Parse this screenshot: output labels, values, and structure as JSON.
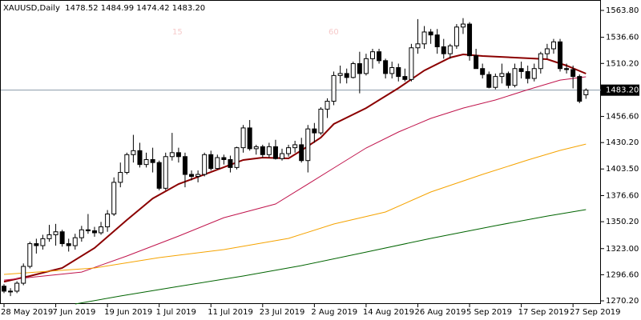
{
  "chart_data": {
    "type": "candlestick",
    "header": "XAUUSD,Daily  1478.52 1484.99 1474.42 1483.20",
    "annotations": [
      "15",
      "60"
    ],
    "categories": [
      "28 May 2019",
      null,
      null,
      null,
      null,
      null,
      null,
      null,
      "7 Jun 2019",
      null,
      null,
      null,
      null,
      null,
      null,
      null,
      "19 Jun 2019",
      null,
      null,
      null,
      null,
      null,
      null,
      null,
      "1 Jul 2019",
      null,
      null,
      null,
      null,
      null,
      null,
      null,
      "11 Jul 2019",
      null,
      null,
      null,
      null,
      null,
      null,
      null,
      "23 Jul 2019",
      null,
      null,
      null,
      null,
      null,
      null,
      null,
      "2 Aug 2019",
      null,
      null,
      null,
      null,
      null,
      null,
      null,
      "14 Aug 2019",
      null,
      null,
      null,
      null,
      null,
      null,
      null,
      "26 Aug 2019",
      null,
      null,
      null,
      null,
      null,
      null,
      null,
      "5 Sep 2019",
      null,
      null,
      null,
      null,
      null,
      null,
      null,
      "17 Sep 2019",
      null,
      null,
      null,
      null,
      null,
      null,
      null,
      "27 Sep 2019",
      null,
      null
    ],
    "open": [
      1285,
      1280,
      1280,
      1288,
      1305,
      1328,
      1326,
      1333,
      1337,
      1340,
      1328,
      1326,
      1334,
      1342,
      1341,
      1339,
      1345,
      1358,
      1390,
      1400,
      1418,
      1422,
      1408,
      1413,
      1410,
      1384,
      1416,
      1420,
      1416,
      1398,
      1396,
      1398,
      1418,
      1404,
      1415,
      1413,
      1405,
      1425,
      1445,
      1424,
      1426,
      1418,
      1426,
      1414,
      1419,
      1425,
      1428,
      1412,
      1444,
      1440,
      1464,
      1472,
      1498,
      1500,
      1496,
      1510,
      1500,
      1515,
      1522,
      1513,
      1500,
      1506,
      1497,
      1494,
      1526,
      1530,
      1542,
      1539,
      1527,
      1520,
      1528,
      1547,
      1550,
      1518,
      1505,
      1499,
      1486,
      1497,
      1500,
      1488,
      1505,
      1502,
      1495,
      1505,
      1520,
      1525,
      1532,
      1505,
      1504,
      1497,
      1478.52
    ],
    "high": [
      1287,
      1283,
      1290,
      1308,
      1330,
      1333,
      1337,
      1347,
      1348,
      1342,
      1333,
      1338,
      1346,
      1358,
      1345,
      1350,
      1362,
      1395,
      1410,
      1420,
      1438,
      1430,
      1420,
      1425,
      1412,
      1420,
      1440,
      1425,
      1420,
      1402,
      1402,
      1420,
      1422,
      1418,
      1418,
      1417,
      1426,
      1448,
      1453,
      1428,
      1428,
      1430,
      1433,
      1424,
      1428,
      1432,
      1435,
      1448,
      1450,
      1466,
      1475,
      1502,
      1508,
      1505,
      1512,
      1522,
      1520,
      1525,
      1525,
      1515,
      1512,
      1510,
      1505,
      1530,
      1555,
      1548,
      1545,
      1545,
      1535,
      1530,
      1550,
      1556,
      1552,
      1525,
      1510,
      1502,
      1500,
      1510,
      1502,
      1510,
      1512,
      1508,
      1510,
      1522,
      1530,
      1535,
      1535,
      1510,
      1508,
      1499,
      1484.99
    ],
    "low": [
      1278,
      1275,
      1278,
      1286,
      1303,
      1318,
      1322,
      1330,
      1326,
      1325,
      1320,
      1322,
      1330,
      1338,
      1335,
      1337,
      1340,
      1356,
      1385,
      1398,
      1410,
      1405,
      1405,
      1400,
      1382,
      1382,
      1412,
      1410,
      1385,
      1392,
      1390,
      1396,
      1402,
      1403,
      1408,
      1400,
      1403,
      1420,
      1422,
      1418,
      1415,
      1415,
      1413,
      1412,
      1416,
      1420,
      1410,
      1400,
      1430,
      1438,
      1455,
      1468,
      1490,
      1490,
      1495,
      1480,
      1498,
      1505,
      1510,
      1495,
      1495,
      1492,
      1492,
      1492,
      1520,
      1525,
      1530,
      1520,
      1515,
      1515,
      1525,
      1540,
      1513,
      1505,
      1495,
      1485,
      1484,
      1490,
      1485,
      1486,
      1495,
      1490,
      1492,
      1500,
      1515,
      1520,
      1502,
      1500,
      1485,
      1470,
      1474.42
    ],
    "close": [
      1280,
      1280,
      1288,
      1305,
      1328,
      1326,
      1333,
      1337,
      1340,
      1328,
      1326,
      1334,
      1342,
      1341,
      1339,
      1345,
      1358,
      1390,
      1400,
      1418,
      1422,
      1408,
      1413,
      1410,
      1384,
      1416,
      1420,
      1416,
      1398,
      1396,
      1398,
      1418,
      1404,
      1415,
      1413,
      1405,
      1425,
      1445,
      1424,
      1426,
      1418,
      1426,
      1414,
      1419,
      1425,
      1428,
      1412,
      1444,
      1440,
      1464,
      1472,
      1498,
      1500,
      1496,
      1510,
      1500,
      1515,
      1522,
      1513,
      1500,
      1506,
      1497,
      1494,
      1526,
      1530,
      1542,
      1539,
      1527,
      1520,
      1528,
      1547,
      1550,
      1518,
      1505,
      1499,
      1486,
      1497,
      1500,
      1488,
      1505,
      1502,
      1495,
      1505,
      1520,
      1525,
      1532,
      1505,
      1504,
      1497,
      1472,
      1483.2
    ],
    "indicators": [
      {
        "color": "#8b0000",
        "width": 2,
        "x": [
          0,
          4,
          9,
          14,
          19,
          23,
          27,
          32,
          37,
          40,
          44,
          46,
          49,
          51,
          56,
          61,
          65,
          69,
          71,
          74,
          79,
          84,
          87,
          90
        ],
        "values": [
          1289.6,
          1295.3,
          1303.4,
          1323.6,
          1351.9,
          1373.7,
          1388.3,
          1400.4,
          1412.6,
          1415.0,
          1414.2,
          1422.3,
          1435.2,
          1449.0,
          1465.1,
          1485.3,
          1503.1,
          1516.1,
          1519.3,
          1517.7,
          1516.1,
          1514.5,
          1508.0,
          1499.9
        ]
      },
      {
        "color": "#c0144c",
        "width": 1,
        "x": [
          0,
          12,
          19,
          27,
          34,
          42,
          46,
          51,
          56,
          61,
          66,
          71,
          76,
          81,
          86,
          90
        ],
        "values": [
          1291.2,
          1299.3,
          1315.5,
          1335.7,
          1354.3,
          1368.1,
          1384.2,
          1404.5,
          1424.7,
          1440.9,
          1454.6,
          1465.1,
          1473.2,
          1483.7,
          1493.4,
          1496.7
        ]
      },
      {
        "color": "#f5a300",
        "width": 1,
        "x": [
          0,
          14,
          24,
          34,
          44,
          51,
          59,
          66,
          74,
          81,
          86,
          90
        ],
        "values": [
          1296.9,
          1303.4,
          1313.9,
          1322.0,
          1333.3,
          1347.9,
          1360.0,
          1380.2,
          1398.0,
          1412.6,
          1422.3,
          1428.7
        ]
      },
      {
        "color": "#006400",
        "width": 1,
        "x": [
          11,
          18,
          27,
          37,
          46,
          56,
          66,
          76,
          84,
          90
        ],
        "values": [
          1267.0,
          1275.1,
          1284.8,
          1295.3,
          1305.8,
          1319.5,
          1333.3,
          1346.2,
          1355.9,
          1362.4
        ]
      }
    ],
    "price_line": {
      "value": 1483.2,
      "label": "1483.20"
    },
    "ylim": [
      1267.0,
      1571.9
    ],
    "yticks": [
      {
        "value": 1563.8,
        "label": "1563.80"
      },
      {
        "value": 1536.6,
        "label": "1536.60"
      },
      {
        "value": 1510.2,
        "label": "1510.20"
      },
      {
        "value": 1456.6,
        "label": "1456.60"
      },
      {
        "value": 1430.2,
        "label": "1430.20"
      },
      {
        "value": 1403.5,
        "label": "1403.50"
      },
      {
        "value": 1376.6,
        "label": "1376.60"
      },
      {
        "value": 1350.2,
        "label": "1350.20"
      },
      {
        "value": 1323.0,
        "label": "1323.00"
      },
      {
        "value": 1296.6,
        "label": "1296.60"
      },
      {
        "value": 1270.2,
        "label": "1270.20"
      }
    ],
    "bull_color": "#ffffff",
    "bear_color": "#000000",
    "grid": false
  }
}
